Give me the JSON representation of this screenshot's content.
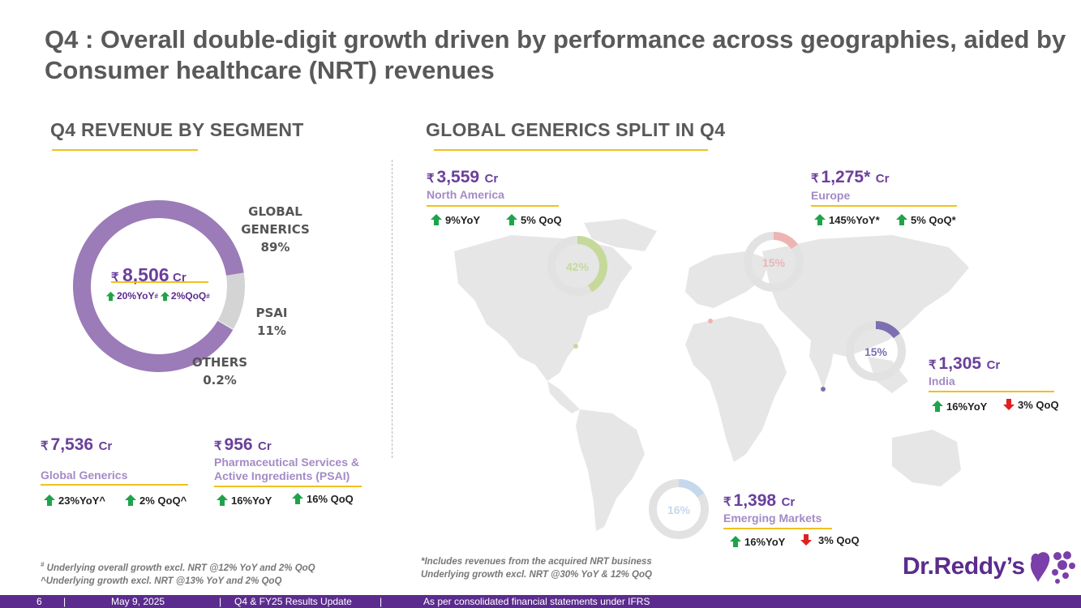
{
  "title": "Q4 : Overall double-digit growth driven by performance across geographies, aided by Consumer healthcare (NRT) revenues",
  "left_section": {
    "heading": "Q4 REVENUE BY SEGMENT",
    "donut": {
      "total_rupee": "₹",
      "total_value": "8,506",
      "total_unit": "Cr",
      "yoy": "20%YoY",
      "yoy_sup": "#",
      "qoq": "2%QoQ",
      "qoq_sup": "#",
      "segments": [
        {
          "name": "GLOBAL GENERICS",
          "pct": "89%",
          "value": 89.0,
          "color": "#9b7bb8"
        },
        {
          "name": "PSAI",
          "pct": "11%",
          "value": 10.8,
          "color": "#d4d4d4"
        },
        {
          "name": "OTHERS",
          "pct": "0.2%",
          "value": 0.2,
          "color": "#ececec"
        }
      ]
    },
    "gg": {
      "rupee": "₹",
      "value": "7,536",
      "unit": "Cr",
      "label": "Global Generics",
      "yoy": "23%YoY^",
      "qoq": "2% QoQ^"
    },
    "psai": {
      "rupee": "₹",
      "value": "956",
      "unit": "Cr",
      "label_line1": "Pharmaceutical Services &",
      "label_line2": "Active Ingredients (PSAI)",
      "yoy": "16%YoY",
      "qoq": "16% QoQ"
    },
    "notes": {
      "line1_sup": "#",
      "line1": " Underlying overall growth excl. NRT @12% YoY and 2% QoQ",
      "line2": "^Underlying growth excl. NRT @13% YoY and 2% QoQ"
    }
  },
  "right_section": {
    "heading": "GLOBAL GENERICS SPLIT IN Q4",
    "regions": {
      "north_america": {
        "rupee": "₹",
        "value": "3,559",
        "unit": "Cr",
        "label": "North America",
        "yoy": "9%YoY",
        "qoq": "5% QoQ",
        "share": "42%",
        "share_value": 42,
        "color": "#c6d99a"
      },
      "europe": {
        "rupee": "₹",
        "value": "1,275*",
        "unit": "Cr",
        "label": "Europe",
        "yoy": "145%YoY*",
        "qoq": "5% QoQ*",
        "share": "15%",
        "share_value": 15,
        "color": "#eeb4b4"
      },
      "india": {
        "rupee": "₹",
        "value": "1,305",
        "unit": "Cr",
        "label": "India",
        "yoy": "16%YoY",
        "qoq": "3% QoQ",
        "share": "15%",
        "share_value": 15,
        "color": "#7d6fb0"
      },
      "emerging": {
        "rupee": "₹",
        "value": "1,398",
        "unit": "Cr",
        "label": "Emerging Markets",
        "yoy": "16%YoY",
        "qoq": "3% QoQ",
        "share": "16%",
        "share_value": 16,
        "color": "#c5d8ee"
      }
    },
    "notes": {
      "line1": "*Includes revenues from the acquired NRT business",
      "line2": "Underlying growth excl. NRT @30% YoY & 12% QoQ"
    }
  },
  "logo": {
    "text": "Dr.Reddy’s"
  },
  "footer": {
    "page": "6",
    "sep": "|",
    "date": "May 9, 2025",
    "event": "Q4 & FY25 Results Update",
    "source": "As per consolidated financial statements under IFRS"
  },
  "colors": {
    "purple": "#6a3f9b",
    "light_purple": "#a48ac6",
    "gold": "#f0c020",
    "up_green": "#1fa34a",
    "down_red": "#e02020",
    "footer_bg": "#5b2c8e"
  }
}
